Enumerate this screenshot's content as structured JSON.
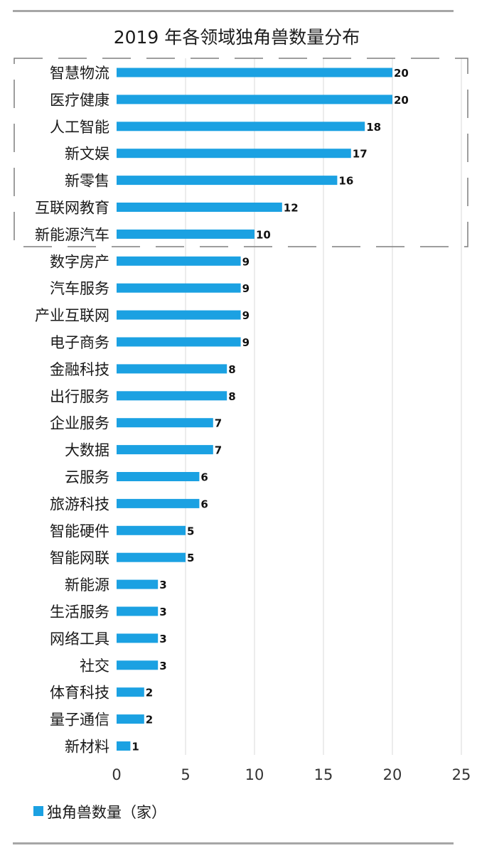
{
  "chart_data": {
    "type": "bar",
    "orientation": "horizontal",
    "title": "2019 年各领域独角兽数量分布",
    "categories": [
      "智慧物流",
      "医疗健康",
      "人工智能",
      "新文娱",
      "新零售",
      "互联网教育",
      "新能源汽车",
      "数字房产",
      "汽车服务",
      "产业互联网",
      "电子商务",
      "金融科技",
      "出行服务",
      "企业服务",
      "大数据",
      "云服务",
      "旅游科技",
      "智能硬件",
      "智能网联",
      "新能源",
      "生活服务",
      "网络工具",
      "社交",
      "体育科技",
      "量子通信",
      "新材料"
    ],
    "series": [
      {
        "name": "独角兽数量（家）",
        "values": [
          20,
          20,
          18,
          17,
          16,
          12,
          10,
          9,
          9,
          9,
          9,
          8,
          8,
          7,
          7,
          6,
          6,
          5,
          5,
          3,
          3,
          3,
          3,
          2,
          2,
          1
        ]
      }
    ],
    "xlim": [
      0,
      25
    ],
    "xticks": [
      "0",
      "5",
      "10",
      "15",
      "20",
      "25"
    ],
    "grid": true,
    "legend_position": "bottom-left",
    "highlight_box": "top-7",
    "colors": {
      "bar": "#1ba1e2",
      "grid": "#d9d9d9",
      "highlight_box": "#7f7f7f",
      "rule": "#a6a6a6"
    }
  }
}
